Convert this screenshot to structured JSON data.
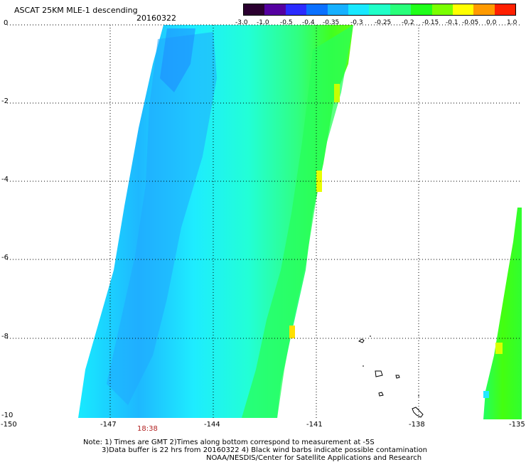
{
  "header": {
    "title": "ASCAT 25KM MLE-1 descending",
    "date": "20160322"
  },
  "colorbar": {
    "labels": [
      "-3.0",
      "-1.0",
      "-0.5",
      "-0.4",
      "-0.35",
      "-0.3",
      "-0.25",
      "-0.2",
      "-0.15",
      "-0.1",
      "-0.05",
      "0.0",
      "1.0"
    ],
    "colors": [
      "#2b0030",
      "#5500a0",
      "#2b2bff",
      "#0a70ff",
      "#16b0ff",
      "#18e8ff",
      "#20ffc8",
      "#28ff7a",
      "#20ff1a",
      "#7aff00",
      "#ffff00",
      "#ff9a00",
      "#ff2000"
    ]
  },
  "axes": {
    "y_labels": [
      "0",
      "-2",
      "-4",
      "-6",
      "-8",
      "-10"
    ],
    "x_labels": [
      "-150",
      "-147",
      "-144",
      "-141",
      "-138",
      "-135"
    ],
    "time_label": "18:38"
  },
  "footer": {
    "line1": "Note: 1) Times are GMT 2)Times along bottom correspond to measurement at -5S",
    "line2": "3)Data buffer is 22 hrs from 20160322 4) Black wind barbs indicate possible contamination",
    "line3": "NOAA/NESDIS/Center for Satellite Applications and Research"
  },
  "map": {
    "swath_colors": {
      "blue": "#1e9eff",
      "cyan": "#1ef0ff",
      "teal": "#22ffd0",
      "green": "#22ff66",
      "lime": "#44ff10",
      "yellow": "#ffee00"
    }
  }
}
